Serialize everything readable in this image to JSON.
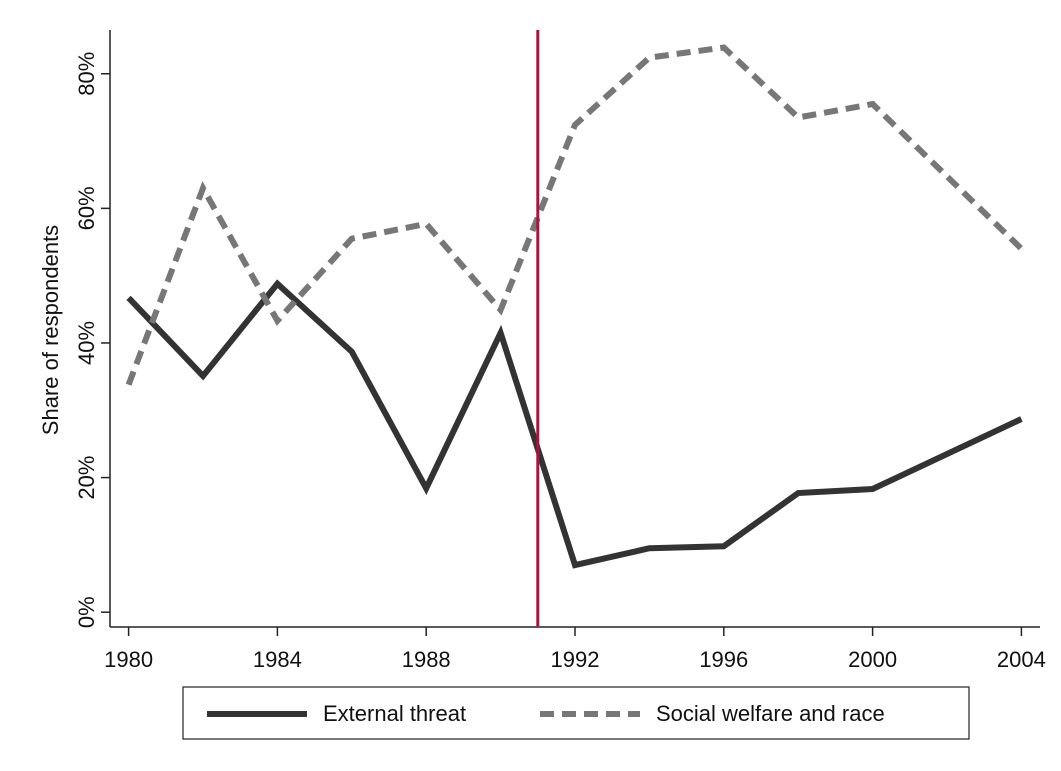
{
  "chart_data": {
    "type": "line",
    "y_label": "Share of respondents",
    "x": [
      1980,
      1982,
      1984,
      1986,
      1988,
      1990,
      1992,
      1994,
      1996,
      1998,
      2000,
      2004
    ],
    "series": [
      {
        "name": "External threat",
        "color": "#333333",
        "dash": false,
        "values": [
          46.7,
          35.1,
          48.8,
          38.7,
          18.4,
          41.5,
          7.0,
          9.5,
          9.8,
          17.7,
          18.3,
          28.7
        ]
      },
      {
        "name": "Social welfare and race",
        "color": "#777777",
        "dash": true,
        "values": [
          33.8,
          63.0,
          43.3,
          55.5,
          57.7,
          44.9,
          72.4,
          82.4,
          83.9,
          73.5,
          75.5,
          54.0
        ]
      }
    ],
    "vline": {
      "x": 1991,
      "color": "#b0103f"
    },
    "xlim": [
      1979.5,
      2004.5
    ],
    "xticks": [
      1980,
      1984,
      1988,
      1992,
      1996,
      2000,
      2004
    ],
    "ylim": [
      -2.2,
      86.5
    ],
    "yticks": [
      {
        "value": 0,
        "label": "0%"
      },
      {
        "value": 20,
        "label": "20%"
      },
      {
        "value": 40,
        "label": "40%"
      },
      {
        "value": 60,
        "label": "60%"
      },
      {
        "value": 80,
        "label": "80%"
      }
    ]
  }
}
